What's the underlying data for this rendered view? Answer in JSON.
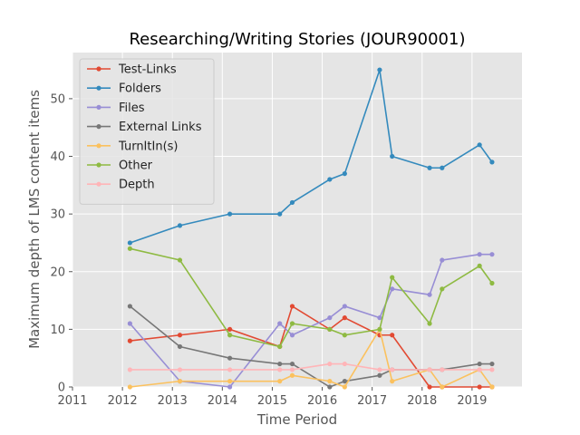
{
  "chart_data": {
    "type": "line",
    "title": "Researching/Writing Stories (JOUR90001)",
    "xlabel": "Time Period",
    "ylabel": "Maximum depth of LMS content items",
    "xlim": [
      2011,
      2020
    ],
    "ylim": [
      0,
      58
    ],
    "xticks": [
      2011,
      2012,
      2013,
      2014,
      2015,
      2016,
      2017,
      2018,
      2019
    ],
    "yticks": [
      0,
      10,
      20,
      30,
      40,
      50
    ],
    "grid": true,
    "legend_position": "top-left",
    "background_color": "#e5e5e5",
    "series": [
      {
        "name": "Test-Links",
        "color": "#e24a33",
        "points": [
          [
            2012.15,
            8
          ],
          [
            2013.15,
            9
          ],
          [
            2014.15,
            10
          ],
          [
            2015.15,
            7
          ],
          [
            2015.4,
            14
          ],
          [
            2016.15,
            10
          ],
          [
            2016.45,
            12
          ],
          [
            2017.15,
            9
          ],
          [
            2017.4,
            9
          ],
          [
            2018.15,
            0
          ],
          [
            2018.4,
            0
          ],
          [
            2019.15,
            0
          ],
          [
            2019.4,
            0
          ]
        ]
      },
      {
        "name": "Folders",
        "color": "#348abd",
        "points": [
          [
            2012.15,
            25
          ],
          [
            2013.15,
            28
          ],
          [
            2014.15,
            30
          ],
          [
            2015.15,
            30
          ],
          [
            2015.4,
            32
          ],
          [
            2016.15,
            36
          ],
          [
            2016.45,
            37
          ],
          [
            2017.15,
            55
          ],
          [
            2017.4,
            40
          ],
          [
            2018.15,
            38
          ],
          [
            2018.4,
            38
          ],
          [
            2019.15,
            42
          ],
          [
            2019.4,
            39
          ]
        ]
      },
      {
        "name": "Files",
        "color": "#988ed5",
        "points": [
          [
            2012.15,
            11
          ],
          [
            2013.15,
            1
          ],
          [
            2014.15,
            0
          ],
          [
            2015.15,
            11
          ],
          [
            2015.4,
            9
          ],
          [
            2016.15,
            12
          ],
          [
            2016.45,
            14
          ],
          [
            2017.15,
            12
          ],
          [
            2017.4,
            17
          ],
          [
            2018.15,
            16
          ],
          [
            2018.4,
            22
          ],
          [
            2019.15,
            23
          ],
          [
            2019.4,
            23
          ]
        ]
      },
      {
        "name": "External Links",
        "color": "#777777",
        "points": [
          [
            2012.15,
            14
          ],
          [
            2013.15,
            7
          ],
          [
            2014.15,
            5
          ],
          [
            2015.15,
            4
          ],
          [
            2015.4,
            4
          ],
          [
            2016.15,
            0
          ],
          [
            2016.45,
            1
          ],
          [
            2017.15,
            2
          ],
          [
            2017.4,
            3
          ],
          [
            2018.15,
            3
          ],
          [
            2018.4,
            3
          ],
          [
            2019.15,
            4
          ],
          [
            2019.4,
            4
          ]
        ]
      },
      {
        "name": "TurnItIn(s)",
        "color": "#fbc15e",
        "points": [
          [
            2012.15,
            0
          ],
          [
            2013.15,
            1
          ],
          [
            2014.15,
            1
          ],
          [
            2015.15,
            1
          ],
          [
            2015.4,
            2
          ],
          [
            2016.15,
            1
          ],
          [
            2016.45,
            0
          ],
          [
            2017.15,
            10
          ],
          [
            2017.4,
            1
          ],
          [
            2018.15,
            3
          ],
          [
            2018.4,
            0
          ],
          [
            2019.15,
            3
          ],
          [
            2019.4,
            0
          ]
        ]
      },
      {
        "name": "Other",
        "color": "#8eba42",
        "points": [
          [
            2012.15,
            24
          ],
          [
            2013.15,
            22
          ],
          [
            2014.15,
            9
          ],
          [
            2015.15,
            7
          ],
          [
            2015.4,
            11
          ],
          [
            2016.15,
            10
          ],
          [
            2016.45,
            9
          ],
          [
            2017.15,
            10
          ],
          [
            2017.4,
            19
          ],
          [
            2018.15,
            11
          ],
          [
            2018.4,
            17
          ],
          [
            2019.15,
            21
          ],
          [
            2019.4,
            18
          ]
        ]
      },
      {
        "name": "Depth",
        "color": "#ffb5b8",
        "points": [
          [
            2012.15,
            3
          ],
          [
            2013.15,
            3
          ],
          [
            2014.15,
            3
          ],
          [
            2015.15,
            3
          ],
          [
            2015.4,
            3
          ],
          [
            2016.15,
            4
          ],
          [
            2016.45,
            4
          ],
          [
            2017.15,
            3
          ],
          [
            2017.4,
            3
          ],
          [
            2018.15,
            3
          ],
          [
            2018.4,
            3
          ],
          [
            2019.15,
            3
          ],
          [
            2019.4,
            3
          ]
        ]
      }
    ]
  }
}
